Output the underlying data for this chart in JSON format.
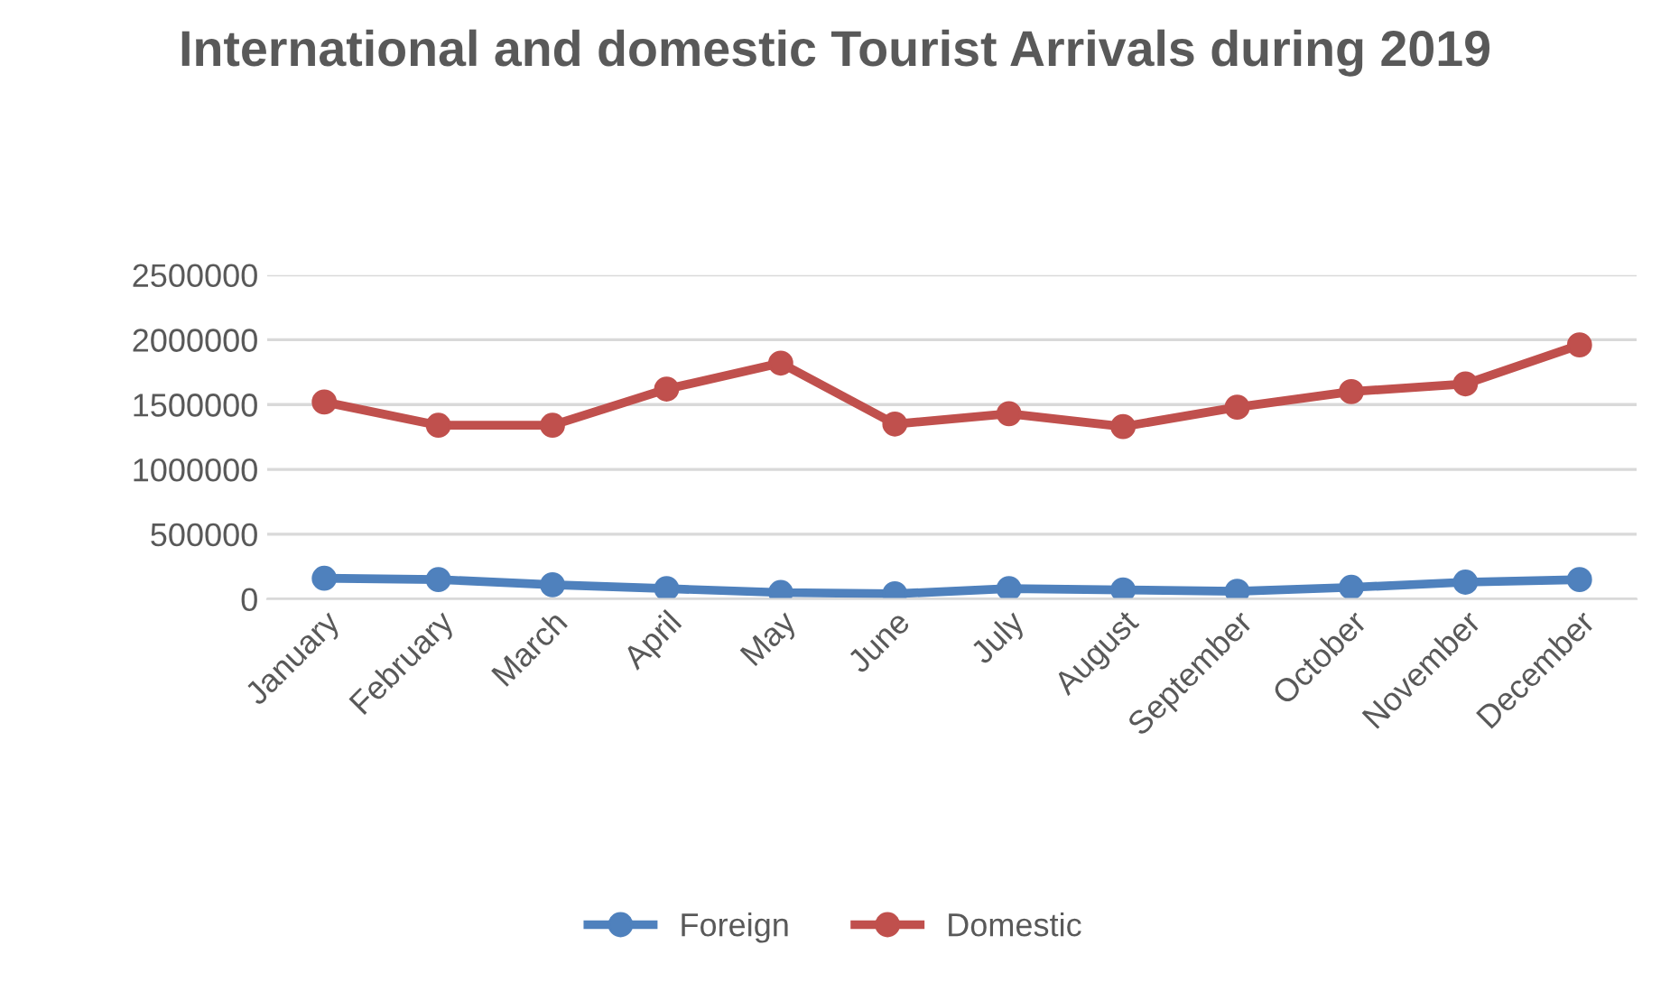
{
  "chart_data": {
    "type": "line",
    "title": "International and domestic Tourist Arrivals during 2019",
    "categories": [
      "January",
      "February",
      "March",
      "April",
      "May",
      "June",
      "July",
      "August",
      "September",
      "October",
      "November",
      "December"
    ],
    "series": [
      {
        "name": "Foreign",
        "color": "#4f81bd",
        "values": [
          160000,
          150000,
          110000,
          80000,
          50000,
          40000,
          80000,
          70000,
          60000,
          90000,
          130000,
          150000
        ]
      },
      {
        "name": "Domestic",
        "color": "#c0504d",
        "values": [
          1520000,
          1340000,
          1340000,
          1620000,
          1820000,
          1350000,
          1430000,
          1330000,
          1480000,
          1600000,
          1660000,
          1960000
        ]
      }
    ],
    "ylim": [
      0,
      2500000
    ],
    "yticks": [
      0,
      500000,
      1000000,
      1500000,
      2000000,
      2500000
    ],
    "grid": "y",
    "legend": "bottom",
    "marker": "circle",
    "line_style": "solid"
  }
}
